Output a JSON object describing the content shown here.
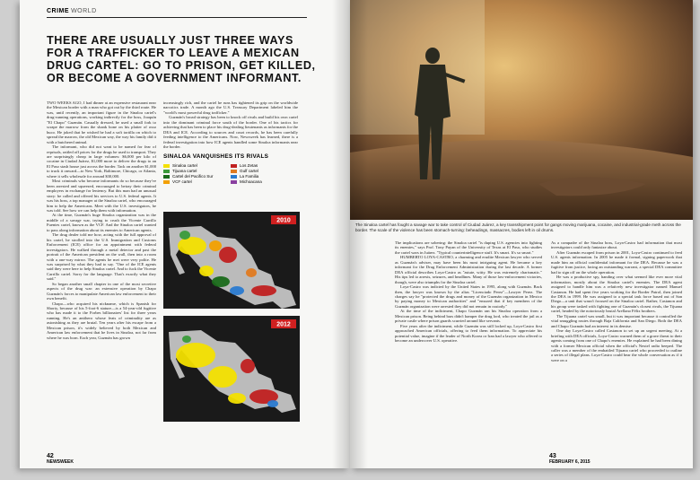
{
  "left_page": {
    "section": "CRIME",
    "subsection": "WORLD",
    "headline": "THERE ARE USUALLY JUST THREE WAYS FOR A TRAFFICKER TO LEAVE A MEXICAN DRUG CARTEL: GO TO PRISON, GET KILLED, OR BECOME A GOVERNMENT INFORMANT.",
    "column_1": [
      "TWO WEEKS AGO, I had dinner at an expensive restaurant near the Mexican border with a man who got out by the third route. He was, until recently, an important figure in the Sinaloa cartel's drug-running operations, working indirectly for the boss, Joaquín \"El Chapo\" Guzmán. Casually dressed, he used a small fork to scrape the marrow from the shank bone on his platter of osso buco. He joked that he wished he had a soft tortilla on which to spread the marrow, the old Mexican way, the way his family did it with a butchered animal.",
      "The informant, who did not want to be named for fear of reprisals, rattled off prices for the drugs he used to transport. They are surprisingly cheap in large volumes: $6,000 per kilo of cocaine in Ciudad Juárez, $1,000 more to deliver the drugs to an El Paso stash house just across the border. Tack on another $1,000 to truck it onward—to New York, Baltimore, Chicago, or Atlanta, where it sells wholesale for around $30,000.",
      "Most criminals who become informants do so because they've been arrested and squeezed, encouraged to betray their criminal employers in exchange for leniency. But this man had an unusual story: he called and offered his services to U.S. federal agents. It was his boss, a top manager at the Sinaloa cartel, who encouraged him to help the Americans. Meet with the U.S. investigators, he was told. See how we can help them with information.",
      "At the time, Guzmán's huge Sinaloa organization was in the middle of a savage war, trying to crush the Vicente Carrillo Fuentes cartel, known as the VCF. And the Sinaloa cartel wanted to pass along information about its enemies to American agents.",
      "The drug dealer told me how, acting with the full approval of his cartel, he strolled into the U.S. Immigration and Customs Enforcement (ICE) office for an appointment with federal investigators. He walked through a metal detector and past the portrait of the American president on the wall, then into a room with a one-way mirror. The agents he met were very polite. He was surprised by what they had to say. \"One of the ICE agents said they were here to help Sinaloa cartel. And to fuck the Vicente Carrillo cartel. Sorry for the language. That's exactly what they said.\"",
      "So began another small chapter in one of the most secretive aspects of the drug war: an extensive operation by Chapo Guzmán's forces to manipulate American law enforcement to their own benefit.",
      "Chapo—who acquired his nickname, which is Spanish for Shorty, because of his 5-foot-6 stature—is a 54-year-old fugitive who has made it to the Forbes billionaires' list for three years running. He's an antihero whose feats of criminality are as astonishing as they are brutal. Ten years after his escape from a Mexican prison, it's widely believed by both Mexican and American law enforcement that he lives in Sinaloa, not far from where he was born. Each year, Guzmán has grown"
    ],
    "column_2": [
      "increasingly rich, and the cartel he runs has tightened its grip on the worldwide narcotics trade. A month ago the U.S. Treasury Department labeled him the \"world's most powerful drug trafficker.\"",
      "Guzmán's broad strategy has been to knock off rivals and build his own cartel into the dominant criminal force south of the border. One of his tactics for achieving that has been to place his drug-dealing lieutenants as informants for the DEA and ICE. According to sources and court records, he has been carefully feeding intelligence to the Americans. Now, Newsweek has learned, there is a federal investigation into how ICE agents handled some Sinaloa informants near the border."
    ],
    "map": {
      "title": "SINALOA VANQUISHES ITS RIVALS",
      "legend": [
        "Sinaloa cartel",
        "Los Zetas",
        "Tijuana cartel",
        "Gulf cartel",
        "Cartel del Pacifico Sur",
        "La Familia",
        "VCF cartel",
        "Michoacana"
      ],
      "panels": [
        "2010",
        "2012"
      ]
    },
    "folio_number": "42",
    "folio_name": "NEWSWEEK"
  },
  "right_page": {
    "photo_caption": "The Sinaloa cartel has fought a savage war to take control of Ciudad Juárez, a key transshipment point for gangs moving marijuana, cocaine, and industrial-grade meth across the border. The scale of the violence has been stomach-turning: beheadings, massacres, bodies left in oil drums.",
    "column_1": [
      "The implications are sobering: the Sinaloa cartel \"is duping U.S. agencies into fighting its enemies,\" says Prof. Tony Payan of the University of Texas at El Paso, who studies the cartel wars in Juárez. \"Typical counterintelligence stuff. It's smart. It's so smart.\"",
      "HUMBERTO LOYA-CASTRO, a charming and erudite Mexican lawyer who served as Guzmán's adviser, may have been his most intriguing agent. He became a key informant for the Drug Enforcement Administration during the last decade. A former DEA official describes Loya-Castro as \"astute, witty. He was extremely charismatic.\" His tips led to arrests, seizures, and headlines. Many of those law-enforcement victories, though, were also triumphs for the Sinaloa cartel.",
      "Loya-Castro was indicted by the United States in 1995, along with Guzmán. Back then, the lawyer was known by the alias \"Licenciado Perez\"—Lawyer Perez. The charges say he \"protected the drugs and money of the Guzmán organization in Mexico by paying money to Mexican authorities\" and \"ensured that if key members of the Guzmán organization were arrested they did not remain in custody.\"",
      "At the time of the indictment, Chapo Guzmán ran his Sinaloa operation from a Mexican prison. Being behind bars didn't hamper the drug lord, who treated the jail as a private castle where prison guards scurried around like servants.",
      "Five years after the indictment, while Guzmán was still locked up, Loya-Castro first approached American officials, offering to feed them information. To appreciate his potential value, imagine if the leader of North Korea or Iran had a lawyer who offered to become an undercover U.S. operative."
    ],
    "column_2": [
      "As a compadre of the Sinaloa boss, Loya-Castro had information that most investigators could only fantasize about.",
      "After Guzmán escaped from prison in 2001, Loya-Castro continued to feed U.S. agents information. In 2005 he made it formal, signing paperwork that made him an official confidential informant for the DEA. Because he was a fugitive from justice, facing an outstanding warrant, a special DEA committee had to sign off on the whole operation.",
      "He was a productive spy, handing over what seemed like ever more vital information, mostly about the Sinaloa cartel's enemies. The DEA agent assigned to handle him was a relatively new investigator named Manuel Castanon. He had spent five years working for the Border Patrol, then joined the DEA in 1999. He was assigned to a special task force based out of San Diego—a unit that wasn't focused on the Sinaloa cartel. Rather, Castanon and his group were tasked with fighting one of Guzmán's closest rivals, the Tijuana cartel, headed by the notoriously brutal Arellano Félix brothers.",
      "The Tijuana cartel was small, but it was important because it controlled the vital smuggling routes through Baja California and San Diego. Both the DEA and Chapo Guzmán had an interest in its demise.",
      "One day Loya-Castro called Castanon to set up an urgent meeting. At a briefing with DEA officials, Loya-Castro warned them of a grave threat to their agents coming from one of Chapo's enemies. He explained he had been dining with a former Mexican official when the official's Nextel radio beeped. The caller was a member of the embattled Tijuana cartel who proceeded to outline a series of illegal plans. Loya-Castro could hear the whole conversation as if it were on a"
    ],
    "folio_number": "43",
    "folio_date": "FEBRUARY 6, 2015"
  }
}
